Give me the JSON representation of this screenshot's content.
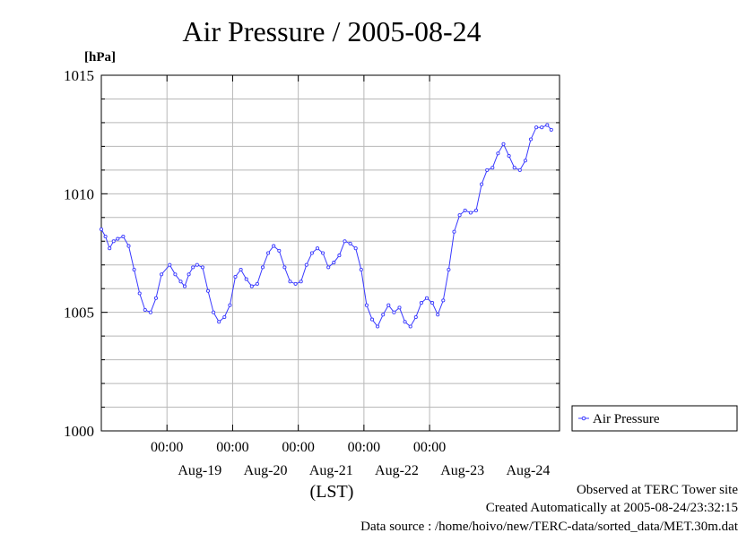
{
  "chart_data": {
    "type": "line",
    "title": "Air Pressure / 2005-08-24",
    "ylabel": "[hPa]",
    "xlabel": "(LST)",
    "ylim": [
      1000,
      1015
    ],
    "y_ticks": [
      "1000",
      "1005",
      "1010",
      "1015"
    ],
    "xlim": [
      "2005-08-18T00:00",
      "2005-08-24T23:30"
    ],
    "x_ticks": [
      {
        "time": "2005-08-19T00:00",
        "label": "00:00"
      },
      {
        "time": "2005-08-20T00:00",
        "label": "00:00"
      },
      {
        "time": "2005-08-21T00:00",
        "label": "00:00"
      },
      {
        "time": "2005-08-22T00:00",
        "label": "00:00"
      },
      {
        "time": "2005-08-23T00:00",
        "label": "00:00"
      }
    ],
    "date_labels": [
      {
        "date": "2005-08-19",
        "label": "Aug-19"
      },
      {
        "date": "2005-08-20",
        "label": "Aug-20"
      },
      {
        "date": "2005-08-21",
        "label": "Aug-21"
      },
      {
        "date": "2005-08-22",
        "label": "Aug-22"
      },
      {
        "date": "2005-08-23",
        "label": "Aug-23"
      },
      {
        "date": "2005-08-24",
        "label": "Aug-24"
      }
    ],
    "grid": true,
    "legend_position": "right",
    "series": [
      {
        "name": "Air Pressure",
        "color": "#3a3aff",
        "marker": "circle",
        "points": [
          [
            "2005-08-18T00:00",
            1008.5
          ],
          [
            "2005-08-18T01:30",
            1008.2
          ],
          [
            "2005-08-18T03:00",
            1007.7
          ],
          [
            "2005-08-18T04:30",
            1008.0
          ],
          [
            "2005-08-18T06:00",
            1008.1
          ],
          [
            "2005-08-18T08:00",
            1008.2
          ],
          [
            "2005-08-18T10:00",
            1007.8
          ],
          [
            "2005-08-18T12:00",
            1006.8
          ],
          [
            "2005-08-18T14:00",
            1005.8
          ],
          [
            "2005-08-18T16:00",
            1005.1
          ],
          [
            "2005-08-18T18:00",
            1005.0
          ],
          [
            "2005-08-18T20:00",
            1005.6
          ],
          [
            "2005-08-18T22:00",
            1006.6
          ],
          [
            "2005-08-19T01:00",
            1007.0
          ],
          [
            "2005-08-19T03:00",
            1006.6
          ],
          [
            "2005-08-19T05:00",
            1006.3
          ],
          [
            "2005-08-19T06:30",
            1006.1
          ],
          [
            "2005-08-19T08:00",
            1006.6
          ],
          [
            "2005-08-19T09:30",
            1006.9
          ],
          [
            "2005-08-19T11:00",
            1007.0
          ],
          [
            "2005-08-19T13:00",
            1006.9
          ],
          [
            "2005-08-19T15:00",
            1005.9
          ],
          [
            "2005-08-19T17:00",
            1005.0
          ],
          [
            "2005-08-19T19:00",
            1004.6
          ],
          [
            "2005-08-19T21:00",
            1004.8
          ],
          [
            "2005-08-19T23:00",
            1005.3
          ],
          [
            "2005-08-20T01:00",
            1006.5
          ],
          [
            "2005-08-20T03:00",
            1006.8
          ],
          [
            "2005-08-20T05:00",
            1006.4
          ],
          [
            "2005-08-20T07:00",
            1006.1
          ],
          [
            "2005-08-20T09:00",
            1006.2
          ],
          [
            "2005-08-20T11:00",
            1006.9
          ],
          [
            "2005-08-20T13:00",
            1007.5
          ],
          [
            "2005-08-20T15:00",
            1007.8
          ],
          [
            "2005-08-20T17:00",
            1007.6
          ],
          [
            "2005-08-20T19:00",
            1006.9
          ],
          [
            "2005-08-20T21:00",
            1006.3
          ],
          [
            "2005-08-20T23:00",
            1006.2
          ],
          [
            "2005-08-21T01:00",
            1006.3
          ],
          [
            "2005-08-21T03:00",
            1007.0
          ],
          [
            "2005-08-21T05:00",
            1007.5
          ],
          [
            "2005-08-21T07:00",
            1007.7
          ],
          [
            "2005-08-21T09:00",
            1007.5
          ],
          [
            "2005-08-21T11:00",
            1006.9
          ],
          [
            "2005-08-21T13:00",
            1007.1
          ],
          [
            "2005-08-21T15:00",
            1007.4
          ],
          [
            "2005-08-21T17:00",
            1008.0
          ],
          [
            "2005-08-21T19:00",
            1007.9
          ],
          [
            "2005-08-21T21:00",
            1007.7
          ],
          [
            "2005-08-21T23:00",
            1006.8
          ],
          [
            "2005-08-22T01:00",
            1005.3
          ],
          [
            "2005-08-22T03:00",
            1004.7
          ],
          [
            "2005-08-22T05:00",
            1004.4
          ],
          [
            "2005-08-22T07:00",
            1004.9
          ],
          [
            "2005-08-22T09:00",
            1005.3
          ],
          [
            "2005-08-22T11:00",
            1005.0
          ],
          [
            "2005-08-22T13:00",
            1005.2
          ],
          [
            "2005-08-22T15:00",
            1004.6
          ],
          [
            "2005-08-22T17:00",
            1004.4
          ],
          [
            "2005-08-22T19:00",
            1004.8
          ],
          [
            "2005-08-22T21:00",
            1005.4
          ],
          [
            "2005-08-22T23:00",
            1005.6
          ],
          [
            "2005-08-23T01:00",
            1005.4
          ],
          [
            "2005-08-23T03:00",
            1004.9
          ],
          [
            "2005-08-23T05:00",
            1005.5
          ],
          [
            "2005-08-23T07:00",
            1006.8
          ],
          [
            "2005-08-23T09:00",
            1008.4
          ],
          [
            "2005-08-23T11:00",
            1009.1
          ],
          [
            "2005-08-23T13:00",
            1009.3
          ],
          [
            "2005-08-23T15:00",
            1009.2
          ],
          [
            "2005-08-23T17:00",
            1009.3
          ],
          [
            "2005-08-23T19:00",
            1010.4
          ],
          [
            "2005-08-23T21:00",
            1011.0
          ],
          [
            "2005-08-23T23:00",
            1011.1
          ],
          [
            "2005-08-24T01:00",
            1011.7
          ],
          [
            "2005-08-24T03:00",
            1012.1
          ],
          [
            "2005-08-24T05:00",
            1011.6
          ],
          [
            "2005-08-24T07:00",
            1011.1
          ],
          [
            "2005-08-24T09:00",
            1011.0
          ],
          [
            "2005-08-24T11:00",
            1011.4
          ],
          [
            "2005-08-24T13:00",
            1012.3
          ],
          [
            "2005-08-24T15:00",
            1012.8
          ],
          [
            "2005-08-24T17:00",
            1012.8
          ],
          [
            "2005-08-24T19:00",
            1012.9
          ],
          [
            "2005-08-24T20:30",
            1012.7
          ]
        ]
      }
    ]
  },
  "footer": {
    "observed": "Observed at TERC Tower site",
    "created": "Created Automatically at 2005-08-24/23:32:15",
    "source": "Data source : /home/hoivo/new/TERC-data/sorted_data/MET.30m.dat"
  }
}
